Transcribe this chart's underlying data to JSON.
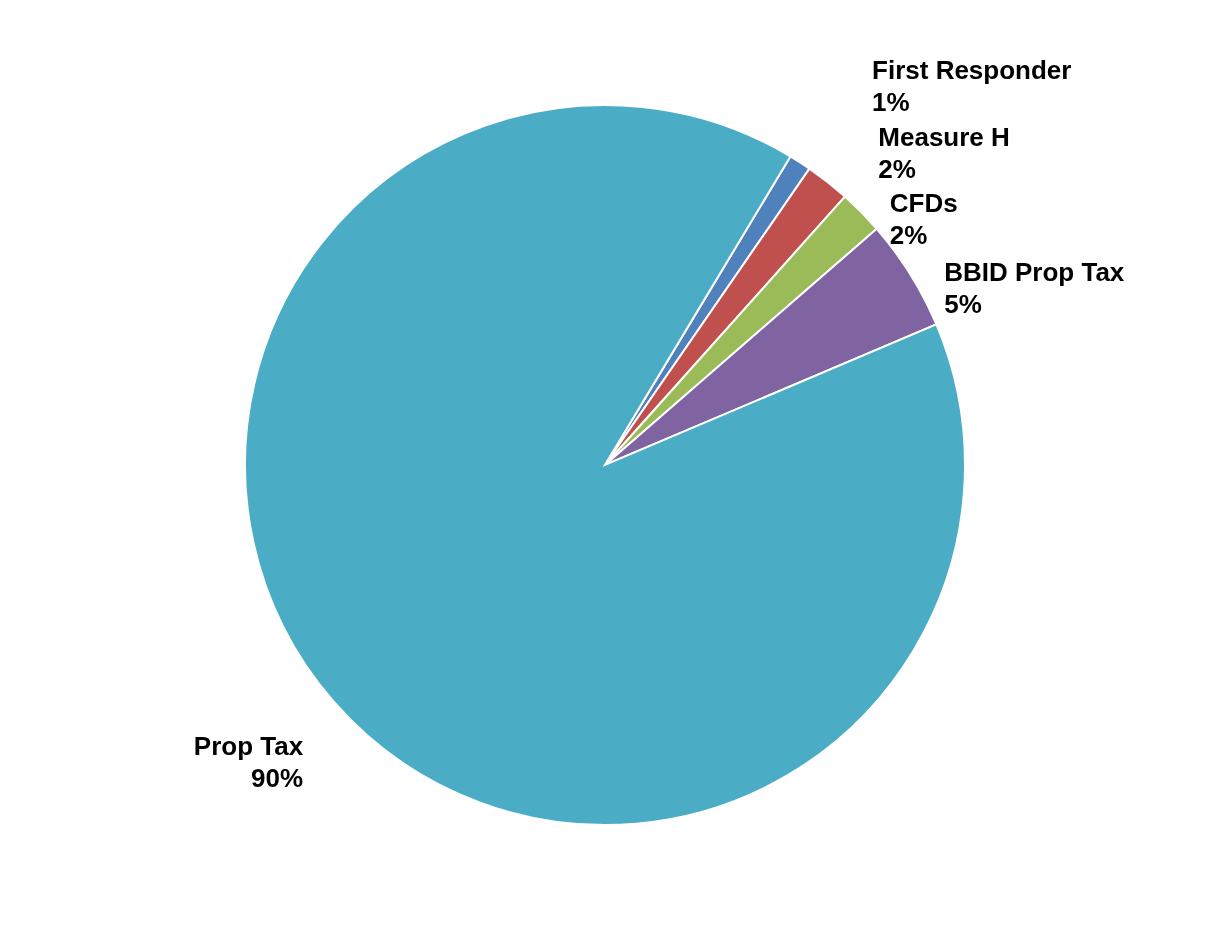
{
  "chart_data": {
    "type": "pie",
    "categories": [
      "First Responder",
      "Measure H",
      "CFDs",
      "BBID Prop Tax",
      "Prop Tax"
    ],
    "values": [
      1,
      2,
      2,
      5,
      90
    ],
    "value_labels": [
      "1%",
      "2%",
      "2%",
      "5%",
      "90%"
    ],
    "colors": [
      "#4f81bd",
      "#c0504d",
      "#9bbb59",
      "#8064a2",
      "#4bacc6"
    ]
  }
}
